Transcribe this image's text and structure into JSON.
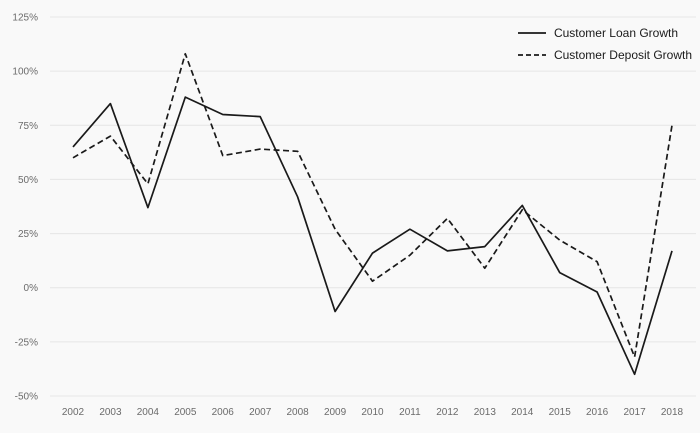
{
  "chart_data": {
    "type": "line",
    "categories": [
      "2002",
      "2003",
      "2004",
      "2005",
      "2006",
      "2007",
      "2008",
      "2009",
      "2010",
      "2011",
      "2012",
      "2013",
      "2014",
      "2015",
      "2016",
      "2017",
      "2018"
    ],
    "series": [
      {
        "name": "Customer Loan Growth",
        "style": "solid",
        "values": [
          65,
          85,
          37,
          88,
          80,
          79,
          42,
          -11,
          16,
          27,
          17,
          19,
          38,
          7,
          -2,
          -40,
          17
        ]
      },
      {
        "name": "Customer Deposit Growth",
        "style": "dashed",
        "values": [
          60,
          70,
          48,
          108,
          61,
          64,
          63,
          27,
          3,
          15,
          32,
          9,
          36,
          22,
          12,
          -32,
          75
        ]
      }
    ],
    "title": "",
    "xlabel": "",
    "ylabel": "",
    "ylim": [
      -50,
      125
    ],
    "yticks": [
      125,
      100,
      75,
      50,
      25,
      0,
      -25,
      -50
    ],
    "ytick_suffix": "%",
    "grid": "horizontal",
    "legend_position": "top-right",
    "colors": {
      "line": "#1a1a1a",
      "grid": "#e6e6e6",
      "tick_text": "#6b6b6b",
      "background": "#f9f9f9"
    }
  }
}
